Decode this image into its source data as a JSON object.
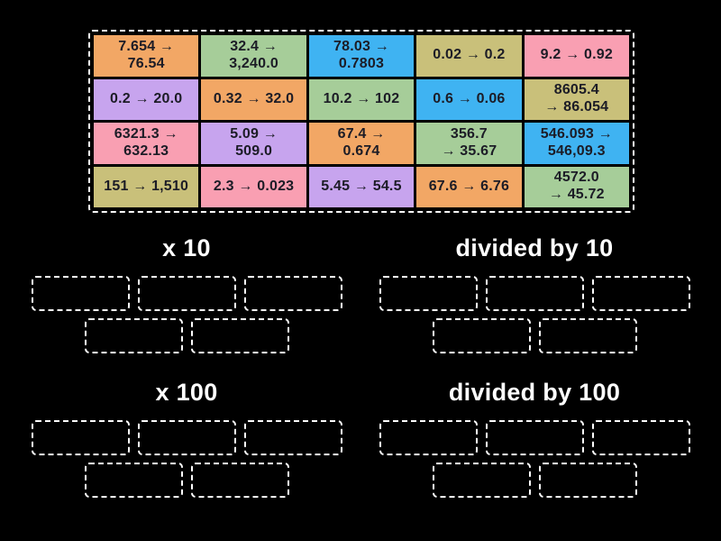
{
  "background": "#000000",
  "palette": {
    "orange": "#F2A765",
    "green": "#A6CD99",
    "blue": "#3FB3F2",
    "khaki": "#C9C07A",
    "pink": "#F99FB2",
    "purple": "#C7A4EE",
    "card_text": "#1C1C26",
    "border": "#FFFFFF"
  },
  "pool": {
    "cards": [
      {
        "text": "7.654 →\n76.54",
        "color": "orange"
      },
      {
        "text": "32.4 →\n3,240.0",
        "color": "green"
      },
      {
        "text": "78.03 →\n0.7803",
        "color": "blue"
      },
      {
        "text": "0.02 → 0.2",
        "color": "khaki"
      },
      {
        "text": "9.2 → 0.92",
        "color": "pink"
      },
      {
        "text": "0.2 → 20.0",
        "color": "purple"
      },
      {
        "text": "0.32 → 32.0",
        "color": "orange"
      },
      {
        "text": "10.2 → 102",
        "color": "green"
      },
      {
        "text": "0.6 → 0.06",
        "color": "blue"
      },
      {
        "text": "8605.4\n→ 86.054",
        "color": "khaki"
      },
      {
        "text": "6321.3 →\n632.13",
        "color": "pink"
      },
      {
        "text": "5.09 →\n509.0",
        "color": "purple"
      },
      {
        "text": "67.4 →\n0.674",
        "color": "orange"
      },
      {
        "text": "356.7\n→ 35.67",
        "color": "green"
      },
      {
        "text": "546.093 →\n546,09.3",
        "color": "blue"
      },
      {
        "text": "151 → 1,510",
        "color": "khaki"
      },
      {
        "text": "2.3 → 0.023",
        "color": "pink"
      },
      {
        "text": "5.45 → 54.5",
        "color": "purple"
      },
      {
        "text": "67.6 → 6.76",
        "color": "orange"
      },
      {
        "text": "4572.0\n→ 45.72",
        "color": "green"
      }
    ]
  },
  "groups": [
    {
      "label": "x 10",
      "slot_count": 5
    },
    {
      "label": "divided by 10",
      "slot_count": 5
    },
    {
      "label": "x 100",
      "slot_count": 5
    },
    {
      "label": "divided by 100",
      "slot_count": 5
    }
  ]
}
